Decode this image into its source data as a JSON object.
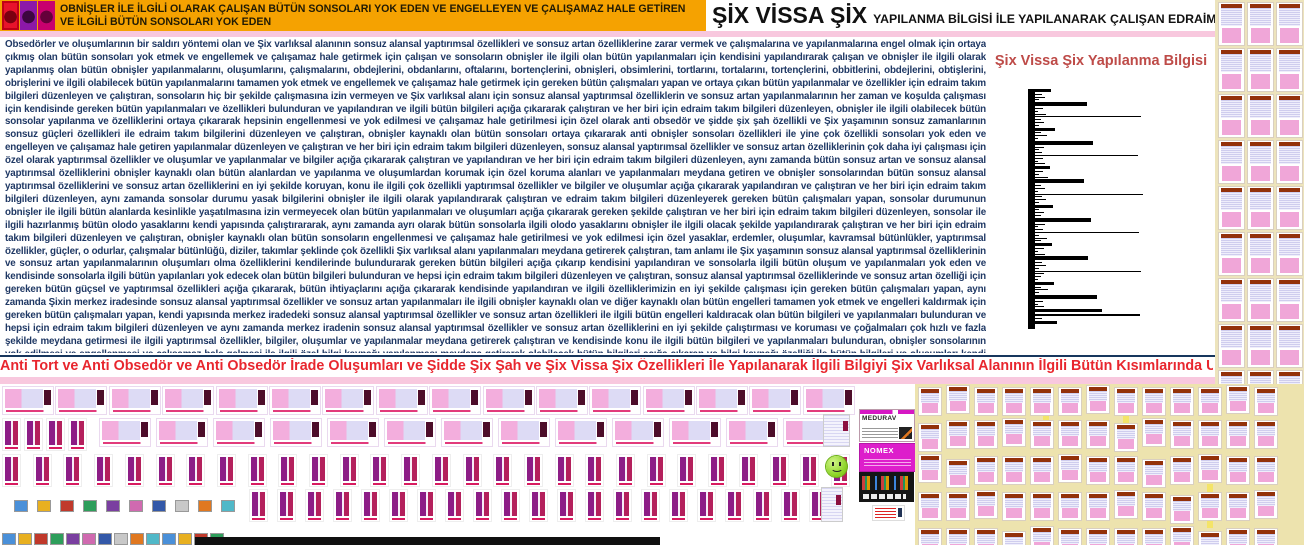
{
  "header": {
    "left_title_line1": "OBNİŞLER İLE İLGİLİ OLARAK ÇALIŞAN BÜTÜN SONSOLARI YOK EDEN VE ENGELLEYEN VE ÇALIŞAMAZ HALE GETİREN",
    "left_title_line2": "VE İLGİLİ BÜTÜN SONSOLARI YOK EDEN",
    "right_title_main": "ŞİX VİSSA ŞİX",
    "right_title_rest": "YAPILANMA BİLGİSİ İLE YAPILANARAK ÇALIŞAN EDRAİM TAKIM BİLGİLERİ"
  },
  "body_text": "Obsedörler ve oluşumlarının bir saldırı yöntemi olan ve Şix varlıksal alanının sonsuz alansal yaptırımsal özellikleri ve sonsuz artan özelliklerine zarar vermek ve çalışmalarına ve yapılanmalarına engel olmak için ortaya çıkmış olan bütün sonsoları yok etmek ve engellemek ve çalışamaz hale getirmek için çalışan ve sonsoların obnişler ile ilgili olan bütün yapılanmaları için kendisini yapılandırarak çalışan ve obnişler ile ilgili olarak yapılanmış olan bütün obnişler yapılanmalarını, oluşumlarını, çalışmalarını, obdejlerini, obdanlarını, oftalarını, bortençlerini, obnişleri, obsimlerini, tortlarını, tortalarını, tortençlerini, obbitlerini, obdejlerini, obtişlerini, obrişlerini ve ilgili olabilecek bütün yapılanmalarını tamamen yok etmek ve engellemek ve çalışamaz hale getirmek için gereken bütün çalışmaları yapan ve ortaya çıkan bütün yapılanmalar ve özellikler için edraim takım bilgileri düzenleyen ve çalıştıran, sonsoların hiç bir şekilde çalışmasına izin vermeyen ve Şix varlıksal alanı için sonsuz alansal yaptırımsal özelliklerin ve sonsuz artan yapılanmalarının her zaman ve koşulda çalışması için kendisinde gereken bütün yapılanmaları ve özellikleri bulunduran ve yapılandıran ve ilgili bütün bilgileri açığa çıkararak çalıştıran ve her biri için edraim takım bilgileri düzenleyen, obnişler ile ilgili olabilecek bütün sonsolar yapılanma ve özelliklerini ortaya çıkararak hepsinin engellenmesi ve yok edilmesi ve çalışamaz hale getirilmesi için özel olarak anti obsedör ve şidde şix şah özellikli ve Şix yaşamının sonsuz zamanlarının sonsuz güçleri özellikleri ile edraim takım bilgilerini düzenleyen ve çalıştıran, obnişler kaynaklı olan bütün sonsoları ortaya çıkararak anti obnişler sonsoları özellikleri ile yine çok özellikli sonsoları yok eden ve engelleyen ve çalışamaz hale getiren yapılanmalar düzenleyen ve çalıştıran ve her biri için edraim takım bilgileri düzenleyen, sonsuz alansal yaptırımsal özellikler ve sonsuz artan özelliklerinin çok daha iyi çalışması için özel olarak yaptırımsal özellikler ve oluşumlar ve yapılanmalar ve bilgiler açığa çıkararak çalıştıran ve yapılandıran ve her biri için edraim takım bilgileri düzenleyen, aynı zamanda bütün sonsuz artan ve sonsuz alansal yaptırımsal özelliklerini obnişler kaynaklı olan bütün alanlardan ve yapılanma ve oluşumlardan korumak için özel koruma alanları ve yapılanmaları meydana getiren ve obnişler sonsolarından bütün sonsuz alansal yaptırımsal özelliklerini ve sonsuz artan özelliklerini en iyi şekilde koruyan, konu ile ilgili çok özellikli yaptırımsal özellikler ve bilgiler ve oluşumlar açığa çıkararak yapılandıran ve çalıştıran ve her biri için edraim takım bilgileri düzenleyen, aynı zamanda sonsolar durumu yasak bilgilerini obnişler ile ilgili olarak yapılandırarak çalıştıran ve edraim takım bilgileri düzenleyerek gereken bütün çalışmaları yapan, sonsolar durumunun obnişler ile ilgili bütün alanlarda kesinlikle yaşatılmasına izin vermeyecek olan bütün yapılanmaları ve oluşumları açığa çıkararak gereken şekilde çalıştıran ve her biri için edraim takım bilgileri düzenleyen, sonsolar ile ilgili hazırlanmış bütün olodo yasaklarını kendi yapısında çalıştırararak, aynı zamanda ayrı olarak bütün sonsolarla ilgili olodo yasaklarını obnişler ile ilgili olacak şekilde yapılandırarak çalıştıran ve her biri için edraim takım bilgileri düzenleyen ve çalıştıran, obnişler kaynaklı olan bütün sonsoların engellenmesi ve çalışamaz hale getirilmesi ve yok edilmesi için özel yasaklar, erdemler, oluşumlar, kavramsal bütünlükler, yaptırımsal özellikler, güçler, o odurlar, çalışmalar bütünlüğü, diziler, takımlar şeklinde çok özellikli Şix varlıksal alanı yapılanmaları meydana getirerek çalıştıran, tam anlamı ile Şix yaşamının sonsuz alansal yaptırımsal özelliklerinin ve sonsuz artan yapılanmalarının oluşumları olma özelliklerini kendilerinde bulundurarak gereken bütün bilgileri açığa çıkarıp kendisini yapılandıran ve sonsolarla ilgili bütün oluşum ve yapılanmaları yok eden ve kendisinde sonsolarla ilgili bütün yapılanları yok edecek olan bütün bilgileri bulunduran ve hepsi için edraim takım bilgileri düzenleyen ve çalıştıran, sonsuz alansal yaptırımsal özelliklerinde ve sonsuz artan özelliği için gereken bütün güçsel ve yaptırımsal özellikleri açığa çıkararak, bütün ihtiyaçlarını açığa çıkararak kendisinde yapılandıran ve ilgili özelliklerimizin en iyi şekilde çalışması için gereken bütün çalışmaları yapan, aynı zamanda Şixin merkez iradesinde sonsuz alansal yaptırımsal özellikler ve sonsuz artan yapılanmaları ile ilgili obnişler kaynaklı olan ve diğer kaynaklı olan bütün engelleri tamamen yok etmek ve engelleri kaldırmak için gereken bütün çalışmaları yapan, kendi yapısında merkez iradedeki sonsuz alansal yaptırımsal özellikler ve sonsuz artan özellikleri ile ilgili bütün engelleri kaldıracak olan bütün bilgileri ve yapılanmaları bulunduran ve hepsi için edraim takım bilgileri düzenleyen ve aynı zamanda merkez iradenin sonsuz alansal yaptırımsal özellikler ve sonsuz artan özelliklerini en iyi şekilde çalıştırması ve koruması ve çoğalmaları çok hızlı ve fazla şekilde meydana getirmesi ile ilgili yaptırımsal özellikler, bilgiler, oluşumlar ve yapılanmalar meydana getirerek çalıştıran ve kendisinde konu ile ilgili bütün bilgileri ve yapılanmaları bulunduran, obnişler sonsolarının yok edilmesi ve engellenmesi ve çalışamaz hale gelmesi ile ilgili özel bilgi kaynağı yapılanması meydana getirerek olabilecek bütün bilgileri açığa çıkaran ve bilgi kaynağı özelliği ile bütün bilgileri ve oluşumları kendi yapısında bulunduran özel bilgi kaynağı gücü ile obnişler sonsolarını tamamen etkisiz hale getirecek olan çalışmaları yapmasını sağlayan ve gereken bütün bilgileri ve oluşum ve yapılanmaları açığa çıkararak çalışan ve bütün yapılanmalarını Şix Vissa Şix bilgisel yapılanması ile sağlayan edraim takım bilgileri gereken şekilde yapılanır.",
  "banner": "Anti Tort ve Anti Obsedör ve Anti Obsedör İrade Oluşumları ve Şidde Şix Şah ve Şix Vissa Şix Özellikleri İle Yapılanarak İlgili Bilgiyi Şix Varlıksal Alanının İlgili Bütün Kısımlarında Uygulatan Edraim Takım Bilgileri Yapılanması",
  "boxes": {
    "medurav_label": "MEDURAV",
    "nomex_label": "NOMEX"
  },
  "colors": {
    "header_orange": "#F5A201",
    "pink_band": "#F8C8DE",
    "body_text_blue": "#1F3864",
    "banner_red": "#E8262E",
    "chart_title_red": "#BE4B48",
    "cream_panel": "#EDE4BC",
    "thumb_pink": "#F3AEDD",
    "thumb_lavender": "#DDDBF5",
    "icon_palette": [
      "#4a90d9",
      "#e8b020",
      "#c0392b",
      "#2e9e5b",
      "#7a3fa0",
      "#d06ab0",
      "#3358a8",
      "#c8c8c8",
      "#e07820",
      "#50b8c8"
    ]
  },
  "chart_data": {
    "type": "bar",
    "orientation": "horizontal",
    "title": "Şix Vissa Şix Yapılanma Bilgisi",
    "note": "dense comb of unlabeled black horizontal bars on a thick black axis; values are relative lengths (percent of plot width), second number is bar thickness in px",
    "bars": [
      [
        14,
        3
      ],
      [
        6,
        1
      ],
      [
        9,
        1
      ],
      [
        4,
        1
      ],
      [
        46,
        4
      ],
      [
        7,
        1
      ],
      [
        3,
        1
      ],
      [
        10,
        1
      ],
      [
        95,
        1
      ],
      [
        5,
        1
      ],
      [
        8,
        1
      ],
      [
        4,
        1
      ],
      [
        18,
        3
      ],
      [
        5,
        1
      ],
      [
        11,
        1
      ],
      [
        3,
        1
      ],
      [
        52,
        4
      ],
      [
        8,
        1
      ],
      [
        4,
        1
      ],
      [
        6,
        1
      ],
      [
        92,
        1
      ],
      [
        7,
        1
      ],
      [
        3,
        1
      ],
      [
        9,
        1
      ],
      [
        13,
        3
      ],
      [
        7,
        1
      ],
      [
        4,
        1
      ],
      [
        12,
        1
      ],
      [
        44,
        4
      ],
      [
        5,
        1
      ],
      [
        9,
        1
      ],
      [
        3,
        1
      ],
      [
        96,
        1
      ],
      [
        6,
        1
      ],
      [
        10,
        1
      ],
      [
        4,
        1
      ],
      [
        16,
        3
      ],
      [
        4,
        1
      ],
      [
        8,
        1
      ],
      [
        5,
        1
      ],
      [
        50,
        4
      ],
      [
        9,
        1
      ],
      [
        3,
        1
      ],
      [
        7,
        1
      ],
      [
        93,
        1
      ],
      [
        4,
        1
      ],
      [
        11,
        1
      ],
      [
        5,
        1
      ],
      [
        15,
        3
      ],
      [
        8,
        1
      ],
      [
        3,
        1
      ],
      [
        9,
        1
      ],
      [
        47,
        4
      ],
      [
        6,
        1
      ],
      [
        10,
        1
      ],
      [
        4,
        1
      ],
      [
        95,
        1
      ],
      [
        8,
        1
      ],
      [
        5,
        1
      ],
      [
        3,
        1
      ],
      [
        17,
        3
      ],
      [
        5,
        1
      ],
      [
        12,
        1
      ],
      [
        4,
        1
      ],
      [
        55,
        4
      ],
      [
        7,
        1
      ],
      [
        3,
        1
      ],
      [
        8,
        1
      ],
      [
        60,
        3
      ],
      [
        94,
        2
      ],
      [
        6,
        1
      ],
      [
        20,
        3
      ]
    ],
    "xlabel": "",
    "ylabel": "",
    "legend": "none",
    "grid": false
  },
  "thumbnails": {
    "right_column_mini_pages": 36,
    "mosaic_mini_pages": 65,
    "rowA_wide_pages": 16,
    "rowB_covers": 4,
    "rowB_wide_pages": 13,
    "rowC_covers": 28,
    "rowD_tiny_icons": 10,
    "rowD_covers": 21,
    "bottom_tiny_icons": 14
  }
}
